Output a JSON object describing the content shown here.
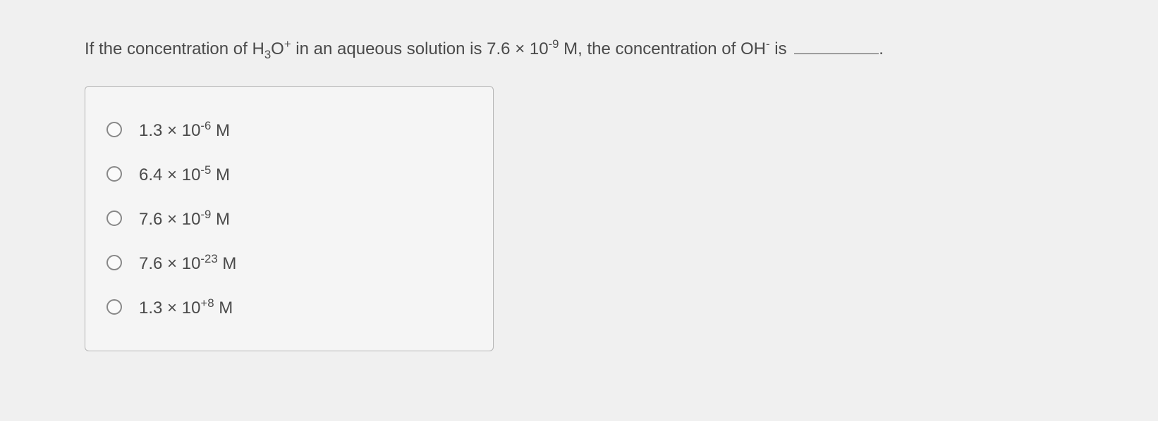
{
  "question": {
    "prefix": "If the concentration of H",
    "sub1": "3",
    "mid1": "O",
    "sup1": "+",
    "mid2": " in an aqueous solution is 7.6 × 10",
    "sup2": "-9",
    "mid3": " M, the concentration of OH",
    "sup3": "-",
    "suffix": " is ",
    "period": "."
  },
  "options": [
    {
      "base": "1.3 × 10",
      "exp": "-6",
      "unit": " M"
    },
    {
      "base": "6.4 × 10",
      "exp": "-5",
      "unit": " M"
    },
    {
      "base": "7.6 × 10",
      "exp": "-9",
      "unit": " M"
    },
    {
      "base": "7.6 × 10",
      "exp": "-23",
      "unit": " M"
    },
    {
      "base": "1.3 × 10",
      "exp": "+8",
      "unit": " M"
    }
  ]
}
